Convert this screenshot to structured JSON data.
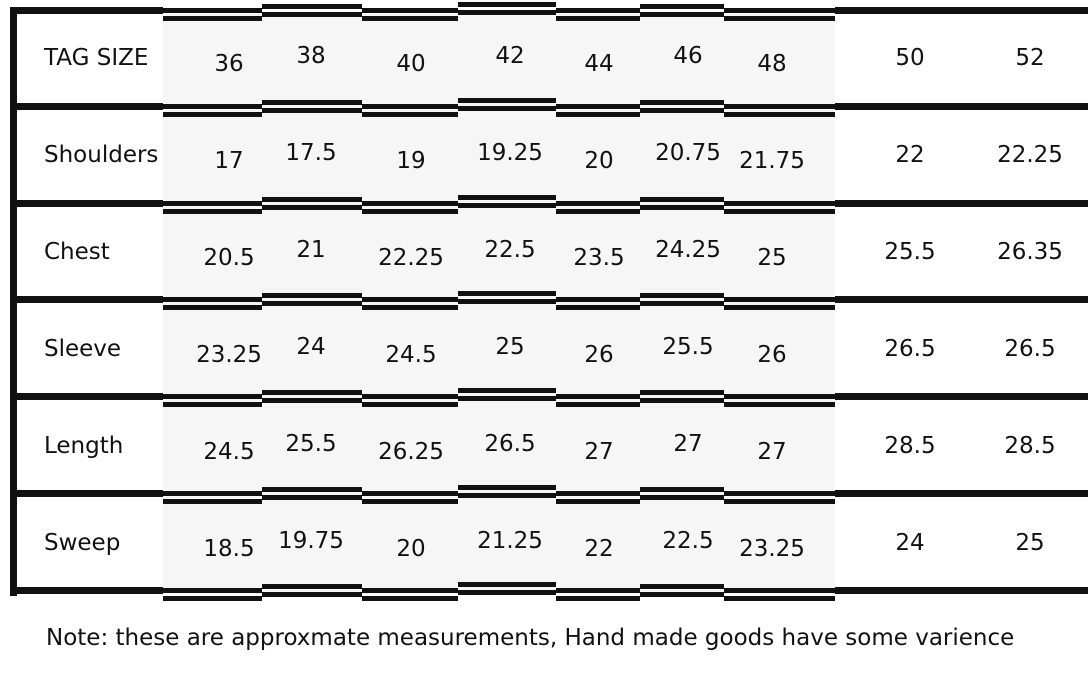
{
  "table": {
    "rows": [
      {
        "label": "TAG SIZE",
        "values": [
          "36",
          "38",
          "40",
          "42",
          "44",
          "46",
          "48",
          "50",
          "52"
        ]
      },
      {
        "label": "Shoulders",
        "values": [
          "17",
          "17.5",
          "19",
          "19.25",
          "20",
          "20.75",
          "21.75",
          "22",
          "22.25"
        ]
      },
      {
        "label": "Chest",
        "values": [
          "20.5",
          "21",
          "22.25",
          "22.5",
          "23.5",
          "24.25",
          "25",
          "25.5",
          "26.35"
        ]
      },
      {
        "label": "Sleeve",
        "values": [
          "23.25",
          "24",
          "24.5",
          "25",
          "26",
          "25.5",
          "26",
          "26.5",
          "26.5"
        ]
      },
      {
        "label": "Length",
        "values": [
          "24.5",
          "25.5",
          "26.25",
          "26.5",
          "27",
          "27",
          "27",
          "28.5",
          "28.5"
        ]
      },
      {
        "label": "Sweep",
        "values": [
          "18.5",
          "19.75",
          "20",
          "21.25",
          "22",
          "22.5",
          "23.25",
          "24",
          "25"
        ]
      }
    ]
  },
  "note": "Note: these are approxmate measurements, Hand made goods have some varience"
}
